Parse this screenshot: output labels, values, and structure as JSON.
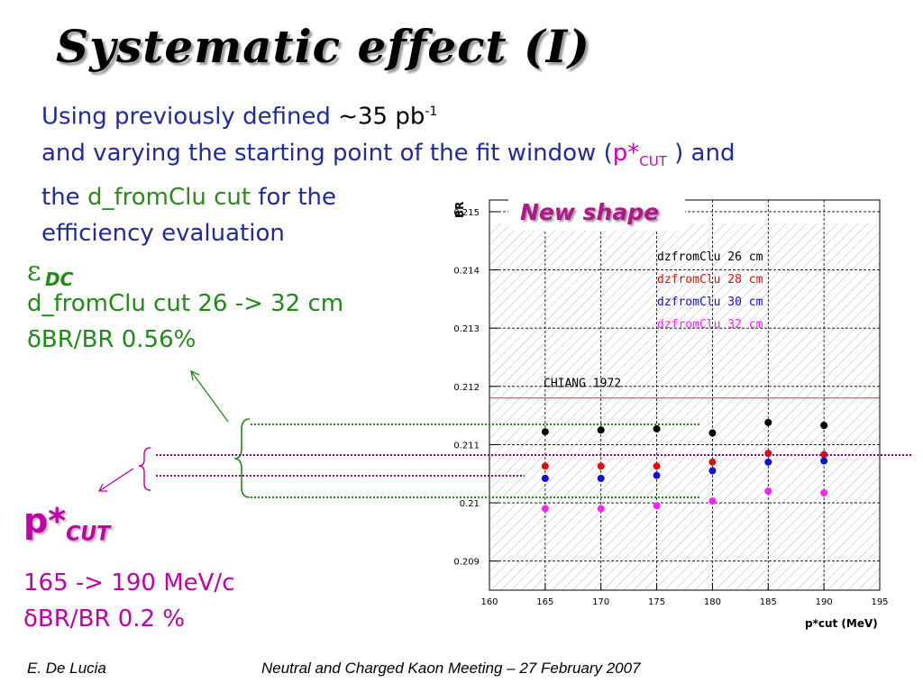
{
  "title": "Systematic effect (I)",
  "intro": {
    "line1_a": "Using previously defined ",
    "line1_b": "~35 pb",
    "line1_sup": "-1",
    "line2_a": "and varying the starting point of the fit window (",
    "line2_p": "p*",
    "line2_sub": "CUT",
    "line2_b": " ) and",
    "line3_a": "the ",
    "line3_g": "d_fromClu cut",
    "line3_b": " for the",
    "line4": "efficiency evaluation"
  },
  "edc": {
    "symbol": "ε",
    "sub": "DC",
    "line1": "d_fromClu cut 26 -> 32 cm",
    "line2": "δBR/BR  0.56%"
  },
  "pcut": {
    "symbol": "p*",
    "sub": "CUT",
    "line1": "165 -> 190 MeV/c",
    "line2": "δBR/BR 0.2 %"
  },
  "badge": "New shape",
  "footer": {
    "author": "E. De Lucia",
    "meeting": "Neutral and Charged Kaon Meeting – 27 February 2007"
  },
  "chart_data": {
    "type": "scatter",
    "ylabel": "BR",
    "xlabel": "p*cut (MeV)",
    "xlim": [
      160,
      195
    ],
    "ylim": [
      0.2085,
      0.2152
    ],
    "x_ticks": [
      160,
      165,
      170,
      175,
      180,
      185,
      190,
      195
    ],
    "y_ticks": [
      0.209,
      0.21,
      0.211,
      0.212,
      0.213,
      0.214,
      0.215
    ],
    "y_tick_labels": [
      "0.209",
      "0.21",
      "0.211",
      "0.212",
      "0.213",
      "0.214",
      "0.215"
    ],
    "grid": true,
    "legend_position": "top-right",
    "reference_line": {
      "label": "CHIANG 1972",
      "y": 0.2118,
      "color": "#e03030"
    },
    "x": [
      165,
      170,
      175,
      180,
      185,
      190
    ],
    "series": [
      {
        "name": "dzfromClu 26 cm",
        "color": "#000000",
        "values": [
          0.21122,
          0.21125,
          0.21127,
          0.2112,
          0.21138,
          0.21133
        ]
      },
      {
        "name": "dzfromClu 28 cm",
        "color": "#e01010",
        "values": [
          0.21063,
          0.21063,
          0.21063,
          0.2107,
          0.21085,
          0.21083
        ]
      },
      {
        "name": "dzfromClu 30 cm",
        "color": "#1010e0",
        "values": [
          0.21042,
          0.21042,
          0.21047,
          0.21055,
          0.2107,
          0.21072
        ]
      },
      {
        "name": "dzfromClu 32 cm",
        "color": "#ff20ff",
        "values": [
          0.2099,
          0.2099,
          0.20995,
          0.21003,
          0.2102,
          0.21017
        ]
      }
    ]
  }
}
